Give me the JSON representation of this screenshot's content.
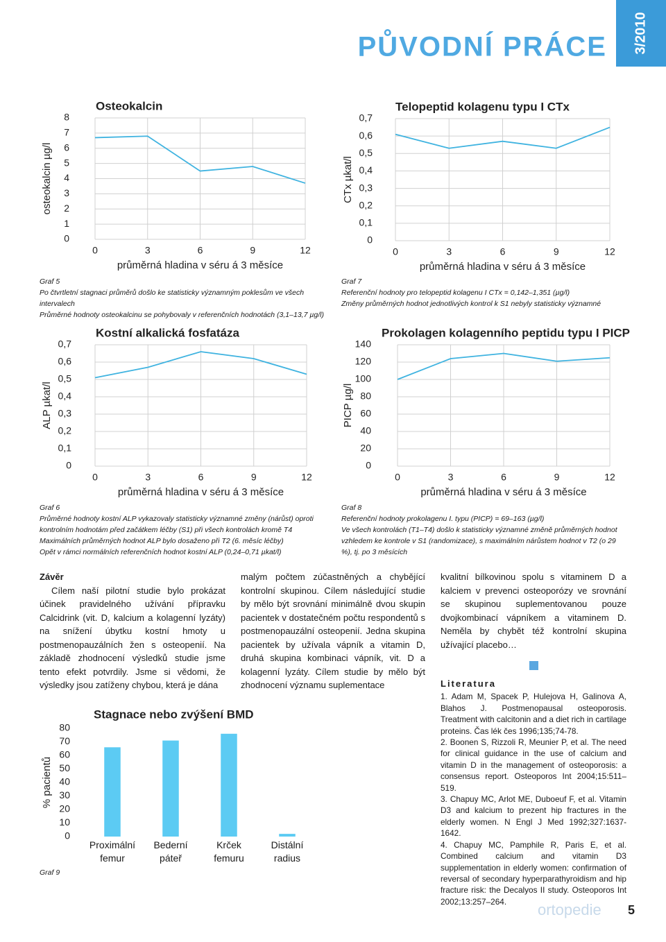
{
  "header": {
    "section": "PŮVODNÍ PRÁCE",
    "issue": "3/2010"
  },
  "chart_data": [
    {
      "type": "line",
      "title": "Osteokalcin",
      "x_label": "průměrná hladina v séru á 3 měsíce",
      "y_label": "osteokalcin µg/l",
      "x": [
        0,
        3,
        6,
        9,
        12
      ],
      "xlim": [
        0,
        12
      ],
      "xticks": [
        0,
        3,
        6,
        9,
        12
      ],
      "ylim": [
        0,
        8
      ],
      "yticks": [
        0,
        1,
        2,
        3,
        4,
        5,
        6,
        7,
        8
      ],
      "series": [
        {
          "color": "#3fb3e0",
          "values": [
            6.7,
            6.8,
            4.5,
            4.8,
            3.7
          ]
        }
      ],
      "grid": true
    },
    {
      "type": "line",
      "title": "Kostní alkalická fosfatáza",
      "x_label": "průměrná hladina v séru á 3 měsíce",
      "y_label": "ALP µkat/l",
      "x": [
        0,
        3,
        6,
        9,
        12
      ],
      "xlim": [
        0,
        12
      ],
      "xticks": [
        0,
        3,
        6,
        9,
        12
      ],
      "ylim": [
        0,
        0.7
      ],
      "yticks": [
        0,
        {
          "value": 0.1,
          "label": "0,1"
        },
        {
          "value": 0.2,
          "label": "0,2"
        },
        {
          "value": 0.3,
          "label": "0,3"
        },
        {
          "value": 0.4,
          "label": "0,4"
        },
        {
          "value": 0.5,
          "label": "0,5"
        },
        {
          "value": 0.6,
          "label": "0,6"
        },
        {
          "value": 0.7,
          "label": "0,7"
        }
      ],
      "series": [
        {
          "color": "#3fb3e0",
          "values": [
            0.51,
            0.57,
            0.66,
            0.62,
            0.53
          ]
        }
      ],
      "grid": true
    },
    {
      "type": "line",
      "title": "Telopeptid kolagenu typu I CTx",
      "x_label": "průměrná hladina v séru á 3 měsíce",
      "y_label": "CTx µkat/l",
      "x": [
        0,
        3,
        6,
        9,
        12
      ],
      "xlim": [
        0,
        12
      ],
      "xticks": [
        0,
        3,
        6,
        9,
        12
      ],
      "ylim": [
        0,
        0.7
      ],
      "yticks": [
        0,
        {
          "value": 0.1,
          "label": "0,1"
        },
        {
          "value": 0.2,
          "label": "0,2"
        },
        {
          "value": 0.3,
          "label": "0,3"
        },
        {
          "value": 0.4,
          "label": "0,4"
        },
        {
          "value": 0.5,
          "label": "0,5"
        },
        {
          "value": 0.6,
          "label": "0,6"
        },
        {
          "value": 0.7,
          "label": "0,7"
        }
      ],
      "series": [
        {
          "color": "#3fb3e0",
          "values": [
            0.61,
            0.53,
            0.57,
            0.53,
            0.65
          ]
        }
      ],
      "grid": true
    },
    {
      "type": "line",
      "title": "Prokolagen kolagenního peptidu typu I PICP",
      "x_label": "průměrná hladina v séru á 3 měsíce",
      "y_label": "PICP µg/l",
      "x": [
        0,
        3,
        6,
        9,
        12
      ],
      "xlim": [
        0,
        12
      ],
      "xticks": [
        0,
        3,
        6,
        9,
        12
      ],
      "ylim": [
        0,
        140
      ],
      "yticks": [
        0,
        20,
        40,
        60,
        80,
        100,
        120,
        140
      ],
      "series": [
        {
          "color": "#3fb3e0",
          "values": [
            100,
            124,
            130,
            121,
            125
          ]
        }
      ],
      "grid": true
    },
    {
      "type": "bar",
      "title": "Stagnace nebo zvýšení BMD",
      "y_label": "% pacientů",
      "categories": [
        "Proximální femur",
        "Bederní páteř",
        "Krček femuru",
        "Distální radius"
      ],
      "values": [
        66,
        71,
        76,
        2
      ],
      "color": "#5ccbf3",
      "ylim": [
        0,
        80
      ],
      "yticks": [
        0,
        10,
        20,
        30,
        40,
        50,
        60,
        70,
        80
      ],
      "grid": false
    }
  ],
  "captions": [
    {
      "label": "Graf 5",
      "lines": [
        "Po čtvrtletní stagnaci průměrů došlo ke statisticky významným poklesům ve všech intervalech",
        "Průměrné hodnoty osteokalcinu se pohybovaly v referenčních hodnotách (3,1–13,7 µg/l)"
      ]
    },
    {
      "label": "Graf 6",
      "lines": [
        "Průměrné hodnoty kostní ALP vykazovaly statisticky významné změny (nárůst) oproti kontrolním hodnotám před začátkem léčby (S1) při všech kontrolách kromě T4",
        "Maximálních průměrných hodnot ALP bylo dosaženo při T2 (6. měsíc léčby)",
        "Opět v rámci normálních referenčních hodnot kostní ALP (0,24–0,71 µkat/l)"
      ]
    },
    {
      "label": "Graf 7",
      "lines": [
        "Referenční hodnoty pro telopeptid kolagenu I CTx = 0,142–1,351 (µg/l)",
        "Změny průměrných hodnot jednotlivých kontrol k S1 nebyly statisticky významné"
      ]
    },
    {
      "label": "Graf 8",
      "lines": [
        "Referenční hodnoty prokolagenu I. typu (PICP) = 69–163 (µg/l)",
        "Ve všech kontrolách (T1–T4) došlo k statisticky významné změně průměrných hodnot vzhledem ke kontrole v S1 (randomizace), s maximálním nárůstem hodnot v T2 (o 29 %), tj. po 3 měsících"
      ]
    },
    {
      "label": "Graf 9",
      "lines": []
    }
  ],
  "body": {
    "heading": "Závěr",
    "columns": [
      "Cílem naší pilotní studie bylo prokázat účinek pravidelného užívání přípravku Calcidrink (vit. D, kalcium a kolagenní lyzáty) na snížení úbytku kostní hmoty u postmenopauzálních žen s osteopenií. Na základě zhodnocení výsledků studie jsme tento efekt potvrdily. Jsme si vědomi, že výsledky jsou zatíženy chybou, která je dána",
      "malým počtem zúčastněných a chybějící kontrolní skupinou. Cílem následující studie by mělo být srovnání minimálně dvou skupin pacientek v dostatečném počtu respondentů s postmenopauzální osteopenií. Jedna skupina pacientek by užívala vápník a vitamin D, druhá skupina kombinaci vápník, vit. D a kolagenní lyzáty. Cílem studie by mělo být zhodnocení významu suplementace",
      "kvalitní bílkovinou spolu s vitaminem D a kalciem v prevenci osteoporózy ve srovnání se skupinou suplementovanou pouze dvojkombinací vápníkem a vitaminem D. Neměla by chybět též kontrolní skupina užívající placebo…"
    ]
  },
  "references": {
    "heading": "Literatura",
    "items": [
      "1. Adam M, Spacek P, Hulejova H, Galinova A, Blahos J. Postmenopausal osteoporosis. Treatment with calcitonin and a diet rich in cartilage proteins. Čas lék čes 1996;135;74-78.",
      "2. Boonen S, Rizzoli R, Meunier P, et al. The need for clinical guidance in the use of calcium and vitamin D in the management of osteoporosis: a consensus report. Osteoporos Int 2004;15:511–519.",
      "3. Chapuy MC, Arlot ME, Duboeuf F, et al. Vitamin D3 and kalcium to prezent hip fractures in the elderly women. N Engl J Med 1992;327:1637-1642.",
      "4. Chapuy MC, Pamphile R, Paris E, et al. Combined calcium and vitamin D3 supplementation in elderly women: confirmation of reversal of secondary hyperparathyroidism and hip fracture risk: the Decalyos II study. Osteoporos Int 2002;13:257–264."
    ]
  },
  "footer": {
    "journal": "ortopedie",
    "page": "5"
  }
}
